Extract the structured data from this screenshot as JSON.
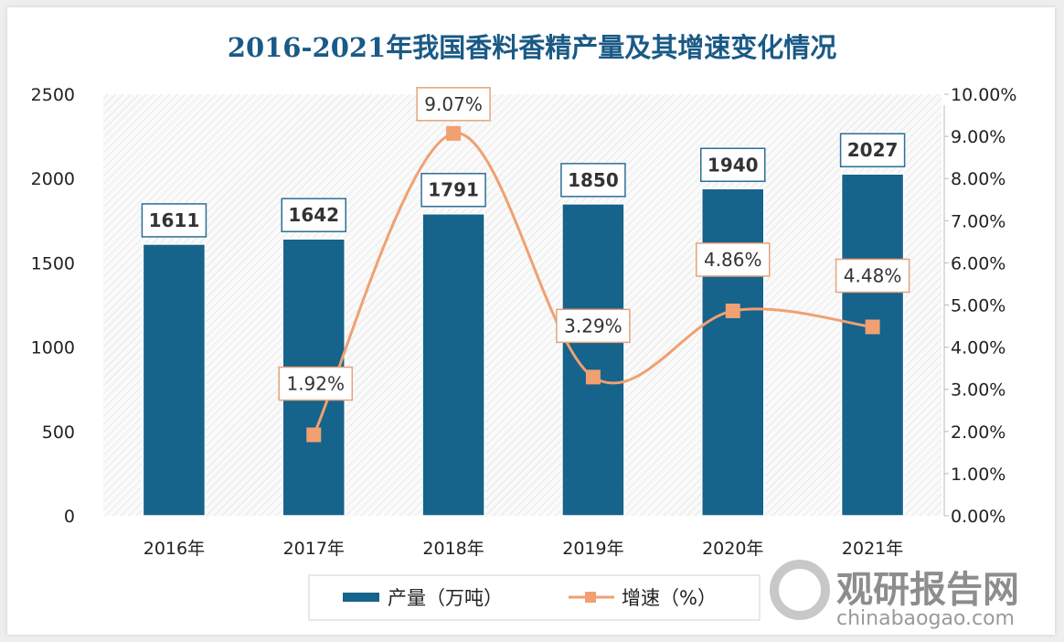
{
  "chart_data": {
    "type": "bar",
    "title": "2016-2021年我国香料香精产量及其增速变化情况",
    "categories": [
      "2016年",
      "2017年",
      "2018年",
      "2019年",
      "2020年",
      "2021年"
    ],
    "series": [
      {
        "name": "产量（万吨）",
        "type": "bar",
        "axis": "left",
        "values": [
          1611,
          1642,
          1791,
          1850,
          1940,
          2027
        ],
        "labels": [
          "1611",
          "1642",
          "1791",
          "1850",
          "1940",
          "2027"
        ]
      },
      {
        "name": "增速（%）",
        "type": "line",
        "axis": "right",
        "values": [
          null,
          1.92,
          9.07,
          3.29,
          4.86,
          4.48
        ],
        "labels": [
          "",
          "1.92%",
          "9.07%",
          "3.29%",
          "4.86%",
          "4.48%"
        ]
      }
    ],
    "ylim": [
      0,
      2500
    ],
    "yticks": [
      "0",
      "500",
      "1000",
      "1500",
      "2000",
      "2500"
    ],
    "y2lim": [
      0,
      10
    ],
    "y2ticks": [
      "0.00%",
      "1.00%",
      "2.00%",
      "3.00%",
      "4.00%",
      "5.00%",
      "6.00%",
      "7.00%",
      "8.00%",
      "9.00%",
      "10.00%"
    ],
    "legend_position": "bottom",
    "colors": {
      "bar": "#16638b",
      "line": "#f0a071",
      "title": "#1a5a86"
    }
  },
  "watermark": {
    "name": "观研报告网",
    "url": "chinabaogao.com"
  }
}
